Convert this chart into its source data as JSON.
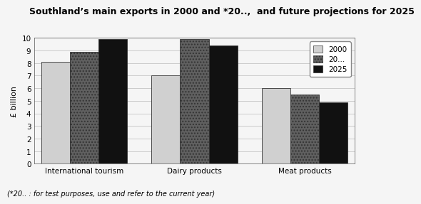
{
  "title": "Southland’s main exports in 2000 and *20..,  and future projections for 2025",
  "categories": [
    "International tourism",
    "Dairy products",
    "Meat products"
  ],
  "series": {
    "2000": [
      8.1,
      7.0,
      6.0
    ],
    "20...": [
      8.9,
      9.9,
      5.5
    ],
    "2025": [
      9.9,
      9.4,
      4.9
    ]
  },
  "legend_labels": [
    "2000",
    "20...",
    "2025"
  ],
  "bar_colors": [
    "#d0d0d0",
    "#606060",
    "#111111"
  ],
  "bar_hatches": [
    "",
    "....",
    ""
  ],
  "ylabel": "£ billion",
  "ylim": [
    0,
    10
  ],
  "yticks": [
    0,
    1,
    2,
    3,
    4,
    5,
    6,
    7,
    8,
    9,
    10
  ],
  "footnote": "(*20.. : for test purposes, use and refer to the current year)",
  "background_color": "#f5f5f5",
  "title_fontsize": 9,
  "label_fontsize": 8,
  "tick_fontsize": 7.5,
  "legend_fontsize": 7.5,
  "footnote_fontsize": 7
}
